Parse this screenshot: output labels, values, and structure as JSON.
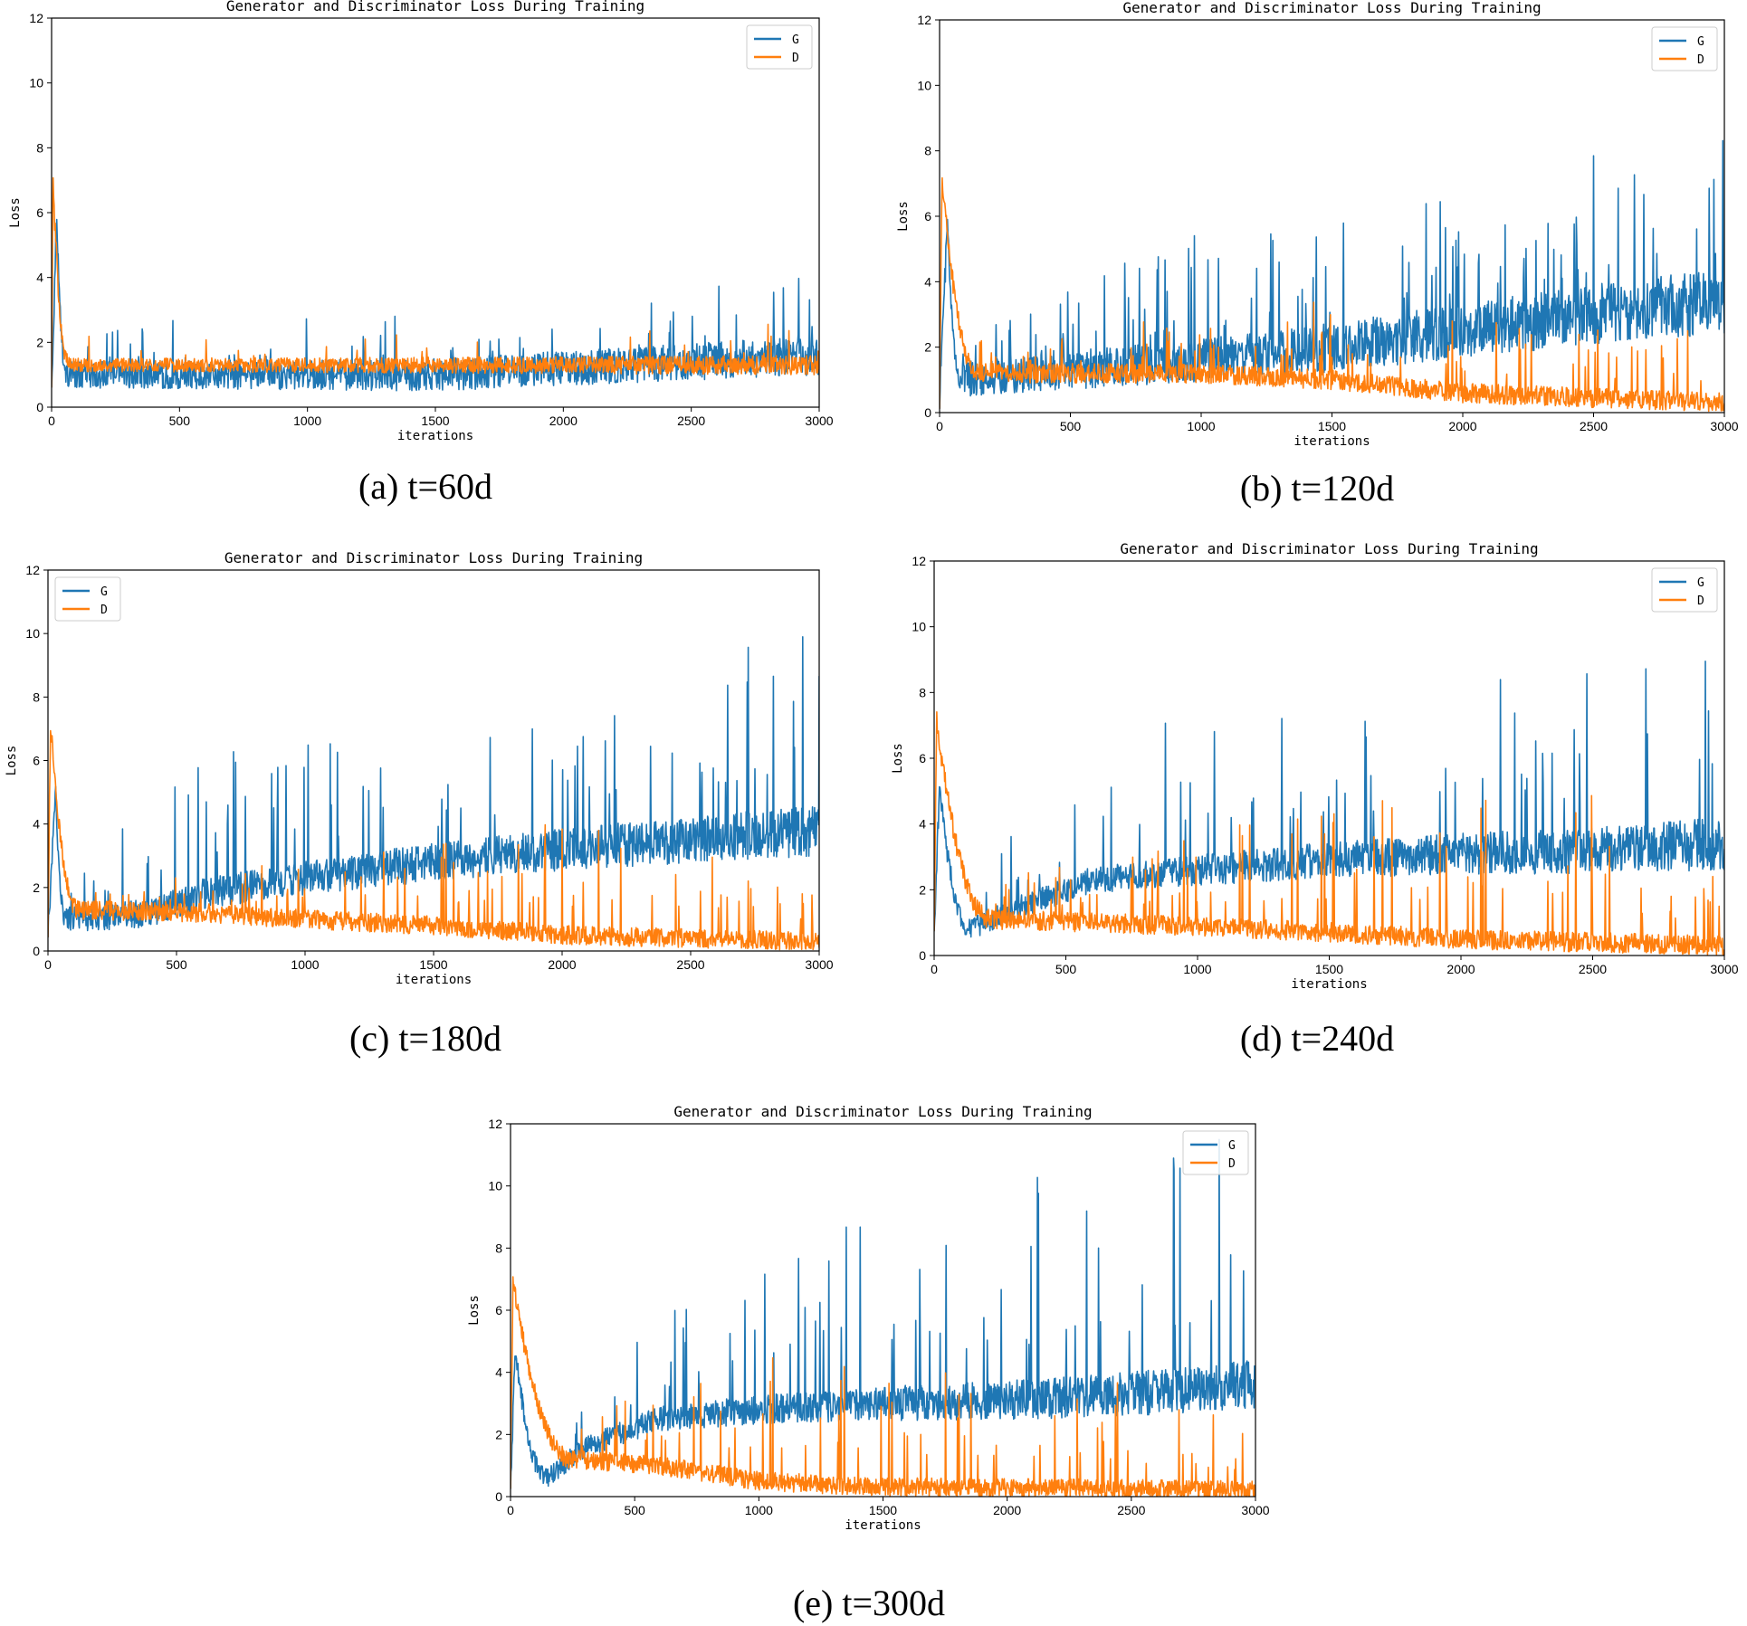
{
  "series_colors": {
    "G": "#1f77b4",
    "D": "#ff7f0e"
  },
  "chart_data": [
    {
      "id": "a",
      "type": "line",
      "title": "Generator and Discriminator Loss During Training",
      "xlabel": "iterations",
      "ylabel": "Loss",
      "xlim": [
        0,
        3000
      ],
      "ylim": [
        0,
        12
      ],
      "xticks": [
        "0",
        "500",
        "1000",
        "1500",
        "2000",
        "2500",
        "3000"
      ],
      "yticks": [
        "0",
        "2",
        "4",
        "6",
        "8",
        "10",
        "12"
      ],
      "legend": "top-right",
      "caption": "(a) t=60d",
      "series": [
        {
          "name": "G",
          "peak": {
            "x": 20,
            "y": 6.0
          },
          "settle_at": 60,
          "trend": [
            [
              60,
              1.0
            ],
            [
              1500,
              1.0
            ],
            [
              2000,
              1.2
            ],
            [
              3000,
              1.6
            ]
          ],
          "noise": [
            [
              0,
              0.4
            ],
            [
              3000,
              0.6
            ]
          ],
          "spike_rate": 0.03,
          "spikes": [
            [
              0,
              2.8
            ],
            [
              2000,
              3.0
            ],
            [
              3000,
              4.3
            ]
          ]
        },
        {
          "name": "D",
          "peak": {
            "x": 5,
            "y": 7.0
          },
          "settle_at": 70,
          "trend": [
            [
              70,
              1.3
            ],
            [
              1500,
              1.3
            ],
            [
              3000,
              1.3
            ]
          ],
          "noise": [
            [
              0,
              0.2
            ],
            [
              3000,
              0.3
            ]
          ],
          "spike_rate": 0.02,
          "spikes": [
            [
              0,
              2.2
            ],
            [
              3000,
              2.6
            ]
          ]
        }
      ]
    },
    {
      "id": "b",
      "type": "line",
      "title": "Generator and Discriminator Loss During Training",
      "xlabel": "iterations",
      "ylabel": "Loss",
      "xlim": [
        0,
        3000
      ],
      "ylim": [
        0,
        12
      ],
      "xticks": [
        "0",
        "500",
        "1000",
        "1500",
        "2000",
        "2500",
        "3000"
      ],
      "yticks": [
        "0",
        "2",
        "4",
        "6",
        "8",
        "10",
        "12"
      ],
      "legend": "top-right",
      "caption": "(b) t=120d",
      "series": [
        {
          "name": "G",
          "peak": {
            "x": 30,
            "y": 5.8
          },
          "settle_at": 80,
          "trend": [
            [
              80,
              1.0
            ],
            [
              500,
              1.3
            ],
            [
              1000,
              1.6
            ],
            [
              1500,
              2.0
            ],
            [
              2000,
              2.5
            ],
            [
              2500,
              3.0
            ],
            [
              3000,
              3.4
            ]
          ],
          "noise": [
            [
              0,
              0.5
            ],
            [
              3000,
              1.0
            ]
          ],
          "spike_rate": 0.06,
          "spikes": [
            [
              0,
              2.5
            ],
            [
              1000,
              5.5
            ],
            [
              2000,
              7.0
            ],
            [
              3000,
              9.0
            ]
          ]
        },
        {
          "name": "D",
          "peak": {
            "x": 10,
            "y": 7.2
          },
          "settle_at": 150,
          "trend": [
            [
              150,
              1.2
            ],
            [
              1000,
              1.2
            ],
            [
              1500,
              1.0
            ],
            [
              2000,
              0.6
            ],
            [
              3000,
              0.3
            ]
          ],
          "noise": [
            [
              0,
              0.3
            ],
            [
              3000,
              0.3
            ]
          ],
          "spike_rate": 0.05,
          "spikes": [
            [
              0,
              2.0
            ],
            [
              1200,
              3.6
            ],
            [
              3000,
              2.6
            ]
          ]
        }
      ]
    },
    {
      "id": "c",
      "type": "line",
      "title": "Generator and Discriminator Loss During Training",
      "xlabel": "iterations",
      "ylabel": "Loss",
      "xlim": [
        0,
        3000
      ],
      "ylim": [
        0,
        12
      ],
      "xticks": [
        "0",
        "500",
        "1000",
        "1500",
        "2000",
        "2500",
        "3000"
      ],
      "yticks": [
        "0",
        "2",
        "4",
        "6",
        "8",
        "10",
        "12"
      ],
      "legend": "top-left",
      "caption": "(c) t=180d",
      "series": [
        {
          "name": "G",
          "peak": {
            "x": 30,
            "y": 5.0
          },
          "settle_at": 70,
          "trend": [
            [
              70,
              1.0
            ],
            [
              400,
              1.2
            ],
            [
              600,
              1.8
            ],
            [
              1000,
              2.3
            ],
            [
              1500,
              2.8
            ],
            [
              2000,
              3.2
            ],
            [
              2500,
              3.5
            ],
            [
              3000,
              3.8
            ]
          ],
          "noise": [
            [
              0,
              0.4
            ],
            [
              3000,
              0.8
            ]
          ],
          "spike_rate": 0.05,
          "spikes": [
            [
              0,
              2.5
            ],
            [
              600,
              6.6
            ],
            [
              1500,
              7.0
            ],
            [
              2200,
              9.4
            ],
            [
              2800,
              10.8
            ]
          ]
        },
        {
          "name": "D",
          "peak": {
            "x": 10,
            "y": 7.2
          },
          "settle_at": 120,
          "trend": [
            [
              120,
              1.3
            ],
            [
              600,
              1.2
            ],
            [
              1000,
              1.0
            ],
            [
              1500,
              0.8
            ],
            [
              2000,
              0.5
            ],
            [
              3000,
              0.3
            ]
          ],
          "noise": [
            [
              0,
              0.3
            ],
            [
              3000,
              0.3
            ]
          ],
          "spike_rate": 0.05,
          "spikes": [
            [
              0,
              2.0
            ],
            [
              1500,
              3.7
            ],
            [
              2200,
              4.3
            ],
            [
              2800,
              3.0
            ]
          ]
        }
      ]
    },
    {
      "id": "d",
      "type": "line",
      "title": "Generator and Discriminator Loss During Training",
      "xlabel": "iterations",
      "ylabel": "Loss",
      "xlim": [
        0,
        3000
      ],
      "ylim": [
        0,
        12
      ],
      "xticks": [
        "0",
        "500",
        "1000",
        "1500",
        "2000",
        "2500",
        "3000"
      ],
      "yticks": [
        "0",
        "2",
        "4",
        "6",
        "8",
        "10",
        "12"
      ],
      "legend": "top-right",
      "caption": "(d) t=240d",
      "series": [
        {
          "name": "G",
          "peak": {
            "x": 20,
            "y": 5.2
          },
          "settle_at": 140,
          "trend": [
            [
              0,
              3.0
            ],
            [
              140,
              0.8
            ],
            [
              300,
              1.4
            ],
            [
              600,
              2.3
            ],
            [
              1000,
              2.6
            ],
            [
              1500,
              2.9
            ],
            [
              2000,
              3.1
            ],
            [
              2500,
              3.2
            ],
            [
              3000,
              3.4
            ]
          ],
          "noise": [
            [
              0,
              0.3
            ],
            [
              3000,
              0.8
            ]
          ],
          "spike_rate": 0.05,
          "spikes": [
            [
              0,
              2.0
            ],
            [
              800,
              7.5
            ],
            [
              1800,
              8.8
            ],
            [
              2700,
              9.4
            ]
          ]
        },
        {
          "name": "D",
          "peak": {
            "x": 10,
            "y": 7.1
          },
          "settle_at": 220,
          "trend": [
            [
              220,
              1.1
            ],
            [
              600,
              1.0
            ],
            [
              1000,
              0.9
            ],
            [
              1500,
              0.7
            ],
            [
              2000,
              0.5
            ],
            [
              3000,
              0.3
            ]
          ],
          "noise": [
            [
              0,
              0.3
            ],
            [
              3000,
              0.3
            ]
          ],
          "spike_rate": 0.05,
          "spikes": [
            [
              0,
              2.0
            ],
            [
              1200,
              4.1
            ],
            [
              2300,
              5.8
            ],
            [
              3000,
              2.5
            ]
          ]
        }
      ]
    },
    {
      "id": "e",
      "type": "line",
      "title": "Generator and Discriminator Loss During Training",
      "xlabel": "iterations",
      "ylabel": "Loss",
      "xlim": [
        0,
        3000
      ],
      "ylim": [
        0,
        12
      ],
      "xticks": [
        "0",
        "500",
        "1000",
        "1500",
        "2000",
        "2500",
        "3000"
      ],
      "yticks": [
        "0",
        "2",
        "4",
        "6",
        "8",
        "10",
        "12"
      ],
      "legend": "top-right",
      "caption": "(e) t=300d",
      "series": [
        {
          "name": "G",
          "peak": {
            "x": 20,
            "y": 4.7
          },
          "settle_at": 150,
          "trend": [
            [
              0,
              2.0
            ],
            [
              150,
              0.6
            ],
            [
              300,
              1.6
            ],
            [
              600,
              2.5
            ],
            [
              1000,
              2.8
            ],
            [
              1500,
              3.0
            ],
            [
              2000,
              3.1
            ],
            [
              2500,
              3.3
            ],
            [
              3000,
              3.6
            ]
          ],
          "noise": [
            [
              0,
              0.3
            ],
            [
              3000,
              0.8
            ]
          ],
          "spike_rate": 0.05,
          "spikes": [
            [
              0,
              2.0
            ],
            [
              1000,
              8.8
            ],
            [
              2000,
              10.0
            ],
            [
              2400,
              10.9
            ],
            [
              2750,
              12.0
            ]
          ]
        },
        {
          "name": "D",
          "peak": {
            "x": 10,
            "y": 7.0
          },
          "settle_at": 250,
          "trend": [
            [
              250,
              1.2
            ],
            [
              600,
              1.0
            ],
            [
              1000,
              0.5
            ],
            [
              1500,
              0.3
            ],
            [
              2000,
              0.3
            ],
            [
              3000,
              0.2
            ]
          ],
          "noise": [
            [
              0,
              0.3
            ],
            [
              3000,
              0.3
            ]
          ],
          "spike_rate": 0.05,
          "spikes": [
            [
              0,
              2.0
            ],
            [
              1000,
              4.6
            ],
            [
              2200,
              4.3
            ],
            [
              3000,
              2.6
            ]
          ]
        }
      ]
    }
  ]
}
